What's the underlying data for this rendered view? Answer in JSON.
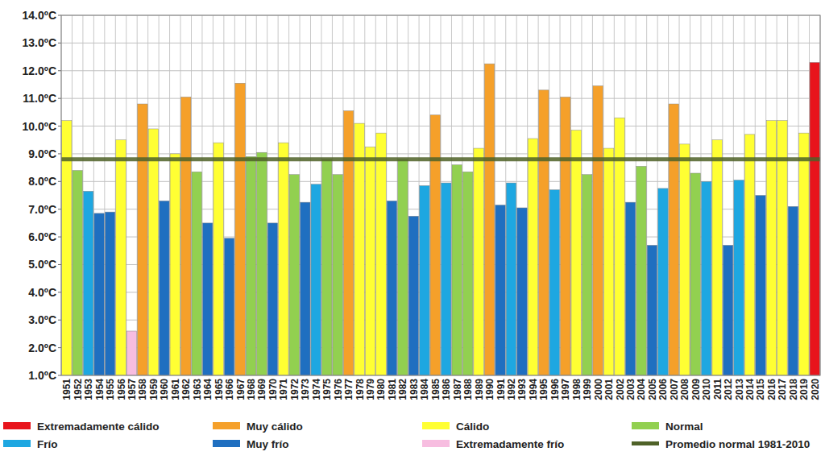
{
  "chart_data": {
    "type": "bar",
    "categories": [
      "1951",
      "1952",
      "1953",
      "1954",
      "1955",
      "1956",
      "1957",
      "1958",
      "1959",
      "1960",
      "1961",
      "1962",
      "1963",
      "1964",
      "1965",
      "1966",
      "1967",
      "1968",
      "1969",
      "1970",
      "1971",
      "1972",
      "1973",
      "1974",
      "1975",
      "1976",
      "1977",
      "1978",
      "1979",
      "1980",
      "1981",
      "1982",
      "1983",
      "1984",
      "1985",
      "1986",
      "1987",
      "1988",
      "1989",
      "1990",
      "1991",
      "1992",
      "1993",
      "1994",
      "1995",
      "1996",
      "1997",
      "1998",
      "1999",
      "2000",
      "2001",
      "2002",
      "2003",
      "2004",
      "2005",
      "2006",
      "2007",
      "2008",
      "2009",
      "2010",
      "2011",
      "2012",
      "2013",
      "2014",
      "2015",
      "2016",
      "2017",
      "2018",
      "2019",
      "2020"
    ],
    "values": [
      10.2,
      8.4,
      7.65,
      6.85,
      6.9,
      9.5,
      2.6,
      10.8,
      9.9,
      7.3,
      9.0,
      11.05,
      8.35,
      6.5,
      9.4,
      5.95,
      11.55,
      8.9,
      9.05,
      6.5,
      9.4,
      8.25,
      7.25,
      7.9,
      8.8,
      8.25,
      10.55,
      10.1,
      9.25,
      9.75,
      7.3,
      8.8,
      6.75,
      7.85,
      10.4,
      7.95,
      8.6,
      8.35,
      9.2,
      12.25,
      7.15,
      7.95,
      7.05,
      9.55,
      11.3,
      7.7,
      11.05,
      9.85,
      8.25,
      11.45,
      9.2,
      10.3,
      7.25,
      8.55,
      5.7,
      7.75,
      10.8,
      9.35,
      8.3,
      8.0,
      9.5,
      5.7,
      8.05,
      9.7,
      7.5,
      10.2,
      10.2,
      7.1,
      9.75,
      12.3
    ],
    "colors": [
      "#ffff33",
      "#92d050",
      "#1ea7e1",
      "#1f6fc0",
      "#1f6fc0",
      "#ffff33",
      "#f7bde0",
      "#f5a02a",
      "#ffff33",
      "#1f6fc0",
      "#ffff33",
      "#f5a02a",
      "#92d050",
      "#1f6fc0",
      "#ffff33",
      "#1f6fc0",
      "#f5a02a",
      "#92d050",
      "#92d050",
      "#1f6fc0",
      "#ffff33",
      "#92d050",
      "#1f6fc0",
      "#1ea7e1",
      "#92d050",
      "#92d050",
      "#f5a02a",
      "#ffff33",
      "#ffff33",
      "#ffff33",
      "#1f6fc0",
      "#92d050",
      "#1f6fc0",
      "#1ea7e1",
      "#f5a02a",
      "#1ea7e1",
      "#92d050",
      "#92d050",
      "#ffff33",
      "#f5a02a",
      "#1f6fc0",
      "#1ea7e1",
      "#1f6fc0",
      "#ffff33",
      "#f5a02a",
      "#1ea7e1",
      "#f5a02a",
      "#ffff33",
      "#92d050",
      "#f5a02a",
      "#ffff33",
      "#ffff33",
      "#1f6fc0",
      "#92d050",
      "#1f6fc0",
      "#1ea7e1",
      "#f5a02a",
      "#ffff33",
      "#92d050",
      "#1ea7e1",
      "#ffff33",
      "#1f6fc0",
      "#1ea7e1",
      "#ffff33",
      "#1f6fc0",
      "#ffff33",
      "#ffff33",
      "#1f6fc0",
      "#ffff33",
      "#e8141c"
    ],
    "legend_entries": [
      {
        "name": "Extremadamente cálido",
        "color": "#e8141c"
      },
      {
        "name": "Muy cálido",
        "color": "#f5a02a"
      },
      {
        "name": "Cálido",
        "color": "#ffff33"
      },
      {
        "name": "Normal",
        "color": "#92d050"
      },
      {
        "name": "Frío",
        "color": "#1ea7e1"
      },
      {
        "name": "Muy frío",
        "color": "#1f6fc0"
      },
      {
        "name": "Extremadamente frío",
        "color": "#f7bde0"
      }
    ],
    "reference_line": {
      "name": "Promedio normal 1981-2010",
      "value": 8.8,
      "color": "#4f6228"
    },
    "ylim": [
      1,
      14
    ],
    "yticks": [
      {
        "value": 1,
        "label": "1.0ºC"
      },
      {
        "value": 2,
        "label": "2.0ºC"
      },
      {
        "value": 3,
        "label": "3.0ºC"
      },
      {
        "value": 4,
        "label": "4.0ºC"
      },
      {
        "value": 5,
        "label": "5.0ºC"
      },
      {
        "value": 6,
        "label": "6.0ºC"
      },
      {
        "value": 7,
        "label": "7.0ºC"
      },
      {
        "value": 8,
        "label": "8.0ºC"
      },
      {
        "value": 9,
        "label": "9.0ºC"
      },
      {
        "value": 10,
        "label": "10.0ºC"
      },
      {
        "value": 11,
        "label": "11.0ºC"
      },
      {
        "value": 12,
        "label": "12.0ºC"
      },
      {
        "value": 13,
        "label": "13.0ºC"
      },
      {
        "value": 14,
        "label": "14.0ºC"
      }
    ],
    "grid": true,
    "legend": "bottom"
  }
}
